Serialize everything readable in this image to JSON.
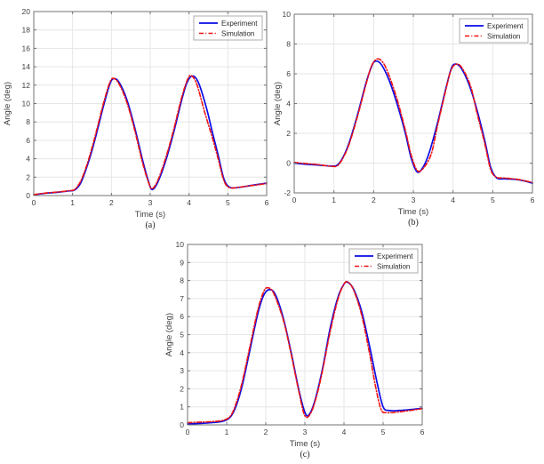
{
  "figure": {
    "background": "#ffffff",
    "axis_color": "#737373",
    "grid_color": "#e6e6e6",
    "text_color": "#3f3f3f",
    "caption_color": "#262626",
    "legend_border": "#aeaeae",
    "legend_bg": "#ffffff"
  },
  "chart_data": [
    {
      "type": "line",
      "caption": "(a)",
      "xlabel": "Time (s)",
      "ylabel": "Angle (deg)",
      "xlim": [
        0,
        6
      ],
      "ylim": [
        0,
        20
      ],
      "xticks": [
        0,
        1,
        2,
        3,
        4,
        5,
        6
      ],
      "yticks": [
        0,
        2,
        4,
        6,
        8,
        10,
        12,
        14,
        16,
        18,
        20
      ],
      "grid": true,
      "legend_position": "top-right",
      "series": [
        {
          "name": "Experiment",
          "color": "#0a0ae6",
          "style": "solid",
          "x": [
            0,
            0.3,
            0.6,
            0.9,
            1.05,
            1.2,
            1.35,
            1.5,
            1.65,
            1.8,
            1.95,
            2.05,
            2.2,
            2.4,
            2.6,
            2.8,
            2.95,
            3.05,
            3.2,
            3.4,
            3.6,
            3.8,
            3.95,
            4.1,
            4.25,
            4.45,
            4.6,
            4.75,
            4.9,
            5.05,
            5.3,
            5.6,
            6.0
          ],
          "values": [
            0.1,
            0.25,
            0.35,
            0.5,
            0.6,
            1.3,
            2.9,
            4.9,
            7.3,
            9.8,
            12.0,
            12.7,
            12.3,
            10.4,
            7.4,
            3.9,
            1.6,
            0.65,
            1.5,
            3.8,
            6.8,
            10.2,
            12.3,
            13.0,
            12.2,
            9.5,
            6.9,
            4.4,
            1.8,
            0.9,
            0.9,
            1.1,
            1.35
          ]
        },
        {
          "name": "Simulation",
          "color": "#f01414",
          "style": "dashdot",
          "x": [
            0,
            0.3,
            0.6,
            0.9,
            1.05,
            1.2,
            1.35,
            1.5,
            1.65,
            1.8,
            1.95,
            2.05,
            2.2,
            2.4,
            2.6,
            2.8,
            2.95,
            3.05,
            3.2,
            3.4,
            3.6,
            3.8,
            3.95,
            4.05,
            4.2,
            4.4,
            4.6,
            4.75,
            4.9,
            5.05,
            5.3,
            5.6,
            6.0
          ],
          "values": [
            0.1,
            0.27,
            0.38,
            0.52,
            0.65,
            1.5,
            3.1,
            5.2,
            7.6,
            10.1,
            12.2,
            12.75,
            12.1,
            10.1,
            7.1,
            3.6,
            1.5,
            0.75,
            1.7,
            4.1,
            7.1,
            10.5,
            12.5,
            13.05,
            12.1,
            9.1,
            6.3,
            4.0,
            1.6,
            0.85,
            0.92,
            1.08,
            1.3
          ]
        }
      ]
    },
    {
      "type": "line",
      "caption": "(b)",
      "xlabel": "Time (s)",
      "ylabel": "Angle (deg)",
      "xlim": [
        0,
        6
      ],
      "ylim": [
        -2,
        10
      ],
      "xticks": [
        0,
        1,
        2,
        3,
        4,
        5,
        6
      ],
      "yticks": [
        -2,
        0,
        2,
        4,
        6,
        8,
        10
      ],
      "grid": true,
      "legend_position": "top-right",
      "series": [
        {
          "name": "Experiment",
          "color": "#0a0ae6",
          "style": "solid",
          "x": [
            0,
            0.3,
            0.6,
            0.95,
            1.1,
            1.25,
            1.4,
            1.6,
            1.8,
            1.95,
            2.05,
            2.2,
            2.4,
            2.6,
            2.8,
            2.95,
            3.1,
            3.25,
            3.4,
            3.6,
            3.8,
            3.95,
            4.05,
            4.2,
            4.4,
            4.6,
            4.8,
            4.95,
            5.1,
            5.3,
            5.6,
            5.8,
            6.0
          ],
          "values": [
            0.0,
            -0.08,
            -0.13,
            -0.2,
            -0.1,
            0.5,
            1.5,
            3.3,
            5.3,
            6.5,
            6.85,
            6.6,
            5.5,
            3.9,
            2.0,
            0.3,
            -0.6,
            -0.25,
            0.7,
            2.6,
            4.8,
            6.3,
            6.65,
            6.4,
            5.3,
            3.6,
            1.5,
            -0.3,
            -1.0,
            -1.05,
            -1.1,
            -1.2,
            -1.35
          ]
        },
        {
          "name": "Simulation",
          "color": "#f01414",
          "style": "dashdot",
          "x": [
            0,
            0.3,
            0.6,
            0.95,
            1.1,
            1.25,
            1.4,
            1.6,
            1.8,
            1.95,
            2.1,
            2.25,
            2.4,
            2.6,
            2.8,
            2.95,
            3.1,
            3.25,
            3.45,
            3.6,
            3.8,
            3.95,
            4.1,
            4.25,
            4.45,
            4.6,
            4.8,
            4.95,
            5.1,
            5.3,
            5.6,
            5.8,
            6.0
          ],
          "values": [
            0.05,
            -0.03,
            -0.1,
            -0.22,
            -0.15,
            0.45,
            1.4,
            3.2,
            5.2,
            6.55,
            7.0,
            6.7,
            5.8,
            4.2,
            2.2,
            0.5,
            -0.5,
            -0.35,
            0.6,
            2.4,
            4.7,
            6.25,
            6.65,
            6.3,
            5.1,
            3.4,
            1.3,
            -0.45,
            -0.95,
            -1.0,
            -1.08,
            -1.18,
            -1.3
          ]
        }
      ]
    },
    {
      "type": "line",
      "caption": "(c)",
      "xlabel": "Time (s)",
      "ylabel": "Angle (deg)",
      "xlim": [
        0,
        6
      ],
      "ylim": [
        0,
        10
      ],
      "xticks": [
        0,
        1,
        2,
        3,
        4,
        5,
        6
      ],
      "yticks": [
        0,
        1,
        2,
        3,
        4,
        5,
        6,
        7,
        8,
        9,
        10
      ],
      "grid": true,
      "legend_position": "top-right",
      "series": [
        {
          "name": "Experiment",
          "color": "#0a0ae6",
          "style": "solid",
          "x": [
            0,
            0.3,
            0.6,
            0.9,
            1.1,
            1.25,
            1.4,
            1.6,
            1.8,
            1.95,
            2.1,
            2.25,
            2.45,
            2.65,
            2.85,
            3.0,
            3.1,
            3.25,
            3.45,
            3.65,
            3.85,
            4.0,
            4.1,
            4.25,
            4.45,
            4.65,
            4.85,
            5.0,
            5.15,
            5.4,
            5.7,
            6.0
          ],
          "values": [
            0.05,
            0.08,
            0.12,
            0.2,
            0.45,
            1.1,
            2.2,
            4.2,
            6.2,
            7.2,
            7.5,
            7.2,
            5.9,
            4.0,
            1.9,
            0.7,
            0.55,
            1.3,
            3.1,
            5.4,
            7.1,
            7.8,
            7.9,
            7.5,
            6.3,
            4.4,
            2.3,
            1.0,
            0.8,
            0.8,
            0.85,
            0.92
          ]
        },
        {
          "name": "Simulation",
          "color": "#f01414",
          "style": "dashdot",
          "x": [
            0,
            0.3,
            0.6,
            0.9,
            1.1,
            1.25,
            1.4,
            1.6,
            1.8,
            1.95,
            2.05,
            2.2,
            2.45,
            2.65,
            2.85,
            3.0,
            3.15,
            3.3,
            3.45,
            3.65,
            3.85,
            4.0,
            4.1,
            4.25,
            4.45,
            4.65,
            4.8,
            4.95,
            5.1,
            5.4,
            5.7,
            6.0
          ],
          "values": [
            0.12,
            0.15,
            0.18,
            0.25,
            0.5,
            1.25,
            2.4,
            4.4,
            6.4,
            7.4,
            7.6,
            7.3,
            5.8,
            3.9,
            1.8,
            0.5,
            0.65,
            1.6,
            3.0,
            5.2,
            7.0,
            7.8,
            7.92,
            7.45,
            6.1,
            4.0,
            2.2,
            0.85,
            0.68,
            0.72,
            0.8,
            0.9
          ]
        }
      ]
    }
  ]
}
